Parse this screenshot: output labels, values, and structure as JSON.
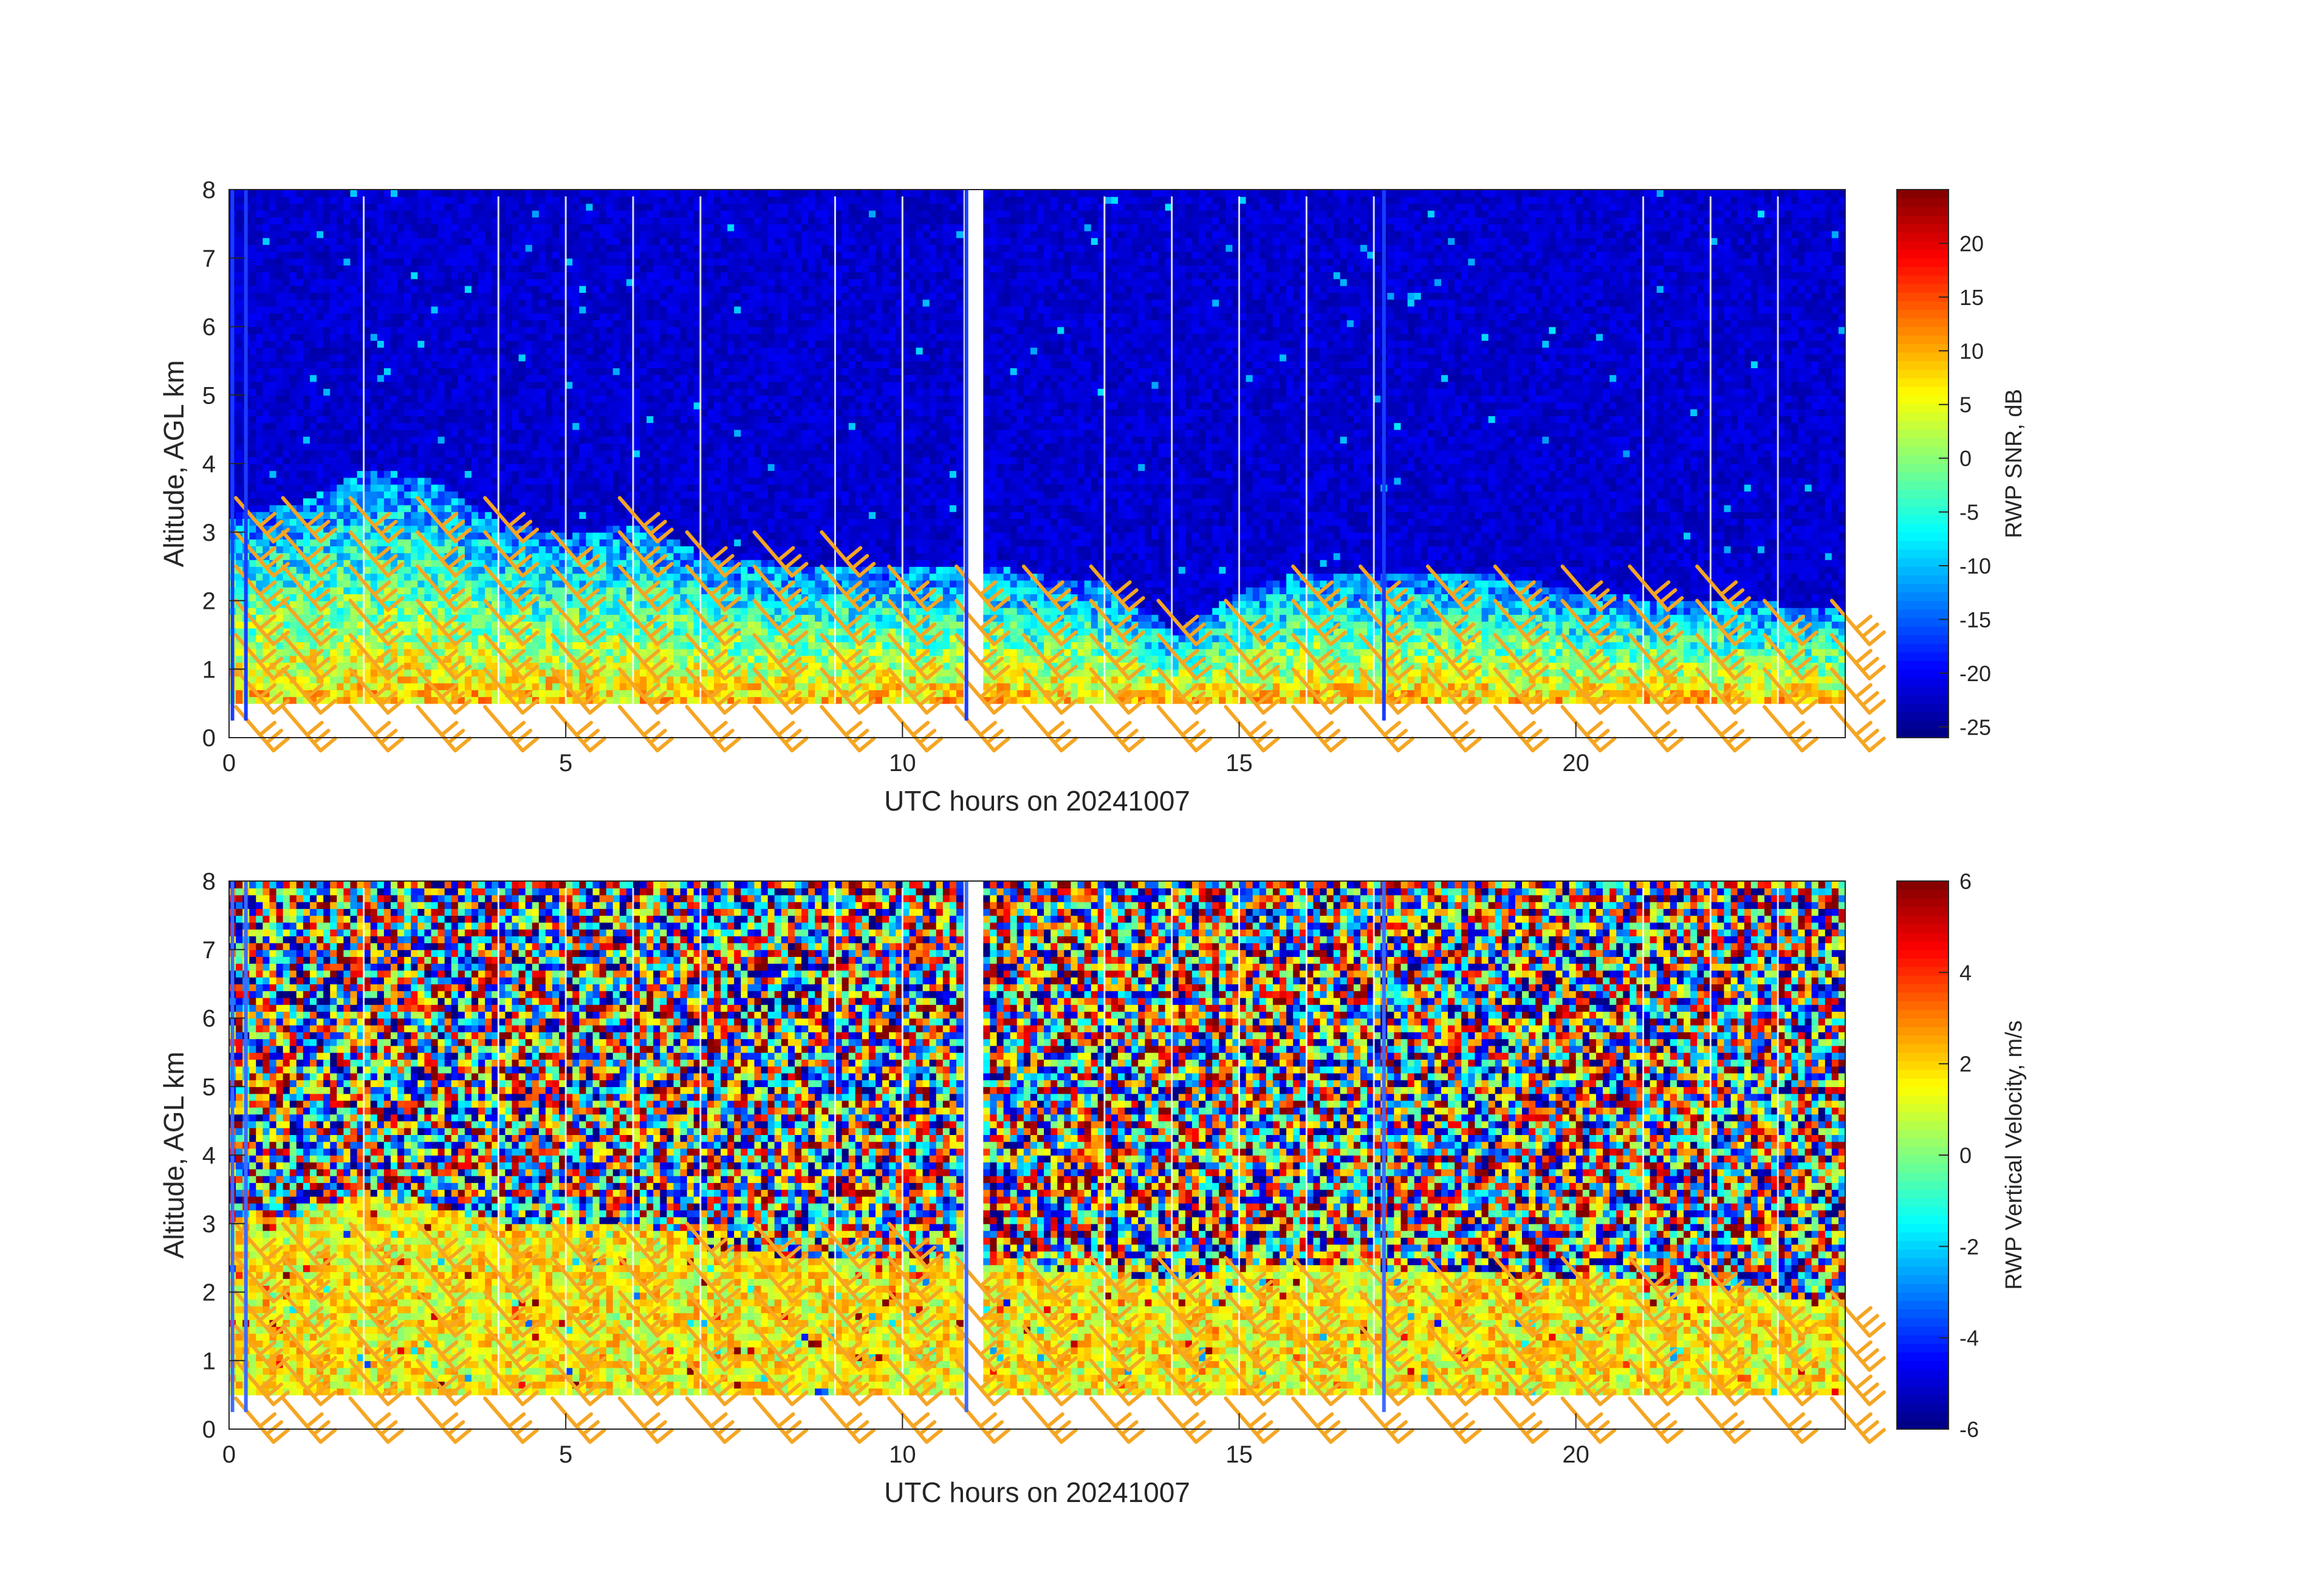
{
  "chart_data": [
    {
      "type": "heatmap",
      "variable": "snr",
      "xlabel": "UTC hours on 20241007",
      "ylabel": "Altitude, AGL km",
      "xlim": [
        0,
        24
      ],
      "ylim": [
        0,
        8
      ],
      "x_ticks": [
        0,
        5,
        10,
        15,
        20
      ],
      "y_ticks": [
        0,
        1,
        2,
        3,
        4,
        5,
        6,
        7,
        8
      ],
      "colorbar": {
        "label": "RWP SNR, dB",
        "colormap": "jet",
        "range": [
          -26,
          25
        ],
        "ticks": [
          -25,
          -20,
          -15,
          -10,
          -5,
          0,
          5,
          10,
          15,
          20
        ]
      },
      "data_altitude_range_km": [
        0.5,
        7.9
      ],
      "data_gap_hours": [
        10.95,
        11.1
      ],
      "signal_top_km": [
        [
          0,
          3.2
        ],
        [
          1,
          3.4
        ],
        [
          2,
          3.9
        ],
        [
          3,
          3.7
        ],
        [
          4,
          3.1
        ],
        [
          5,
          2.9
        ],
        [
          6,
          3.1
        ],
        [
          7,
          2.6
        ],
        [
          8,
          2.5
        ],
        [
          9,
          2.5
        ],
        [
          10,
          2.4
        ],
        [
          11.1,
          2.5
        ],
        [
          12,
          2.3
        ],
        [
          13,
          2.2
        ],
        [
          14,
          1.5
        ],
        [
          15,
          2.1
        ],
        [
          16,
          2.4
        ],
        [
          17,
          2.3
        ],
        [
          18,
          2.4
        ],
        [
          19,
          2.3
        ],
        [
          20,
          2.1
        ],
        [
          21,
          2.0
        ],
        [
          22,
          2.0
        ],
        [
          23,
          1.9
        ],
        [
          24,
          1.8
        ]
      ],
      "wind_barbs": {
        "color": "#F5A623",
        "surface_row_altitude_km": 0.5,
        "column_hours": [
          0.1,
          0.8,
          1.8,
          2.8,
          3.8,
          4.8,
          5.8,
          6.8,
          7.8,
          8.8,
          9.8,
          10.8,
          11.8,
          12.8,
          13.8,
          14.8,
          15.8,
          16.8,
          17.8,
          18.8,
          19.8,
          20.8,
          21.8,
          22.8,
          23.8
        ],
        "aloft_altitudes_km": [
          1.0,
          1.5,
          2.0,
          2.5,
          3.0,
          3.5
        ]
      }
    },
    {
      "type": "heatmap",
      "variable": "vvel",
      "xlabel": "UTC hours on 20241007",
      "ylabel": "Altitude, AGL km",
      "xlim": [
        0,
        24
      ],
      "ylim": [
        0,
        8
      ],
      "x_ticks": [
        0,
        5,
        10,
        15,
        20
      ],
      "y_ticks": [
        0,
        1,
        2,
        3,
        4,
        5,
        6,
        7,
        8
      ],
      "colorbar": {
        "label": "RWP Vertical Velocity, m/s",
        "colormap": "jet",
        "range": [
          -6,
          6
        ],
        "ticks": [
          -6,
          -4,
          -2,
          0,
          2,
          4,
          6
        ]
      },
      "data_altitude_range_km": [
        0.5,
        7.9
      ],
      "data_gap_hours": [
        10.95,
        11.1
      ],
      "signal_top_km": [
        [
          0,
          3.0
        ],
        [
          1,
          3.1
        ],
        [
          2,
          3.4
        ],
        [
          3,
          3.2
        ],
        [
          4,
          3.0
        ],
        [
          5,
          2.9
        ],
        [
          6,
          3.0
        ],
        [
          7,
          2.6
        ],
        [
          8,
          2.5
        ],
        [
          9,
          2.5
        ],
        [
          10,
          2.5
        ],
        [
          11.1,
          2.4
        ],
        [
          12,
          2.3
        ],
        [
          13,
          2.2
        ],
        [
          14,
          2.1
        ],
        [
          15,
          2.3
        ],
        [
          16,
          2.4
        ],
        [
          17,
          2.3
        ],
        [
          18,
          2.3
        ],
        [
          19,
          2.2
        ],
        [
          20,
          2.2
        ],
        [
          21,
          2.1
        ],
        [
          22,
          2.0
        ],
        [
          23,
          1.9
        ],
        [
          24,
          1.9
        ]
      ],
      "wind_barbs": {
        "color": "#F5A623",
        "surface_row_altitude_km": 0.5,
        "column_hours": [
          0.1,
          0.8,
          1.8,
          2.8,
          3.8,
          4.8,
          5.8,
          6.8,
          7.8,
          8.8,
          9.8,
          10.8,
          11.8,
          12.8,
          13.8,
          14.8,
          15.8,
          16.8,
          17.8,
          18.8,
          19.8,
          20.8,
          21.8,
          22.8,
          23.8
        ],
        "aloft_altitudes_km": [
          1.0,
          1.5,
          2.0,
          2.5,
          3.0
        ]
      }
    }
  ]
}
